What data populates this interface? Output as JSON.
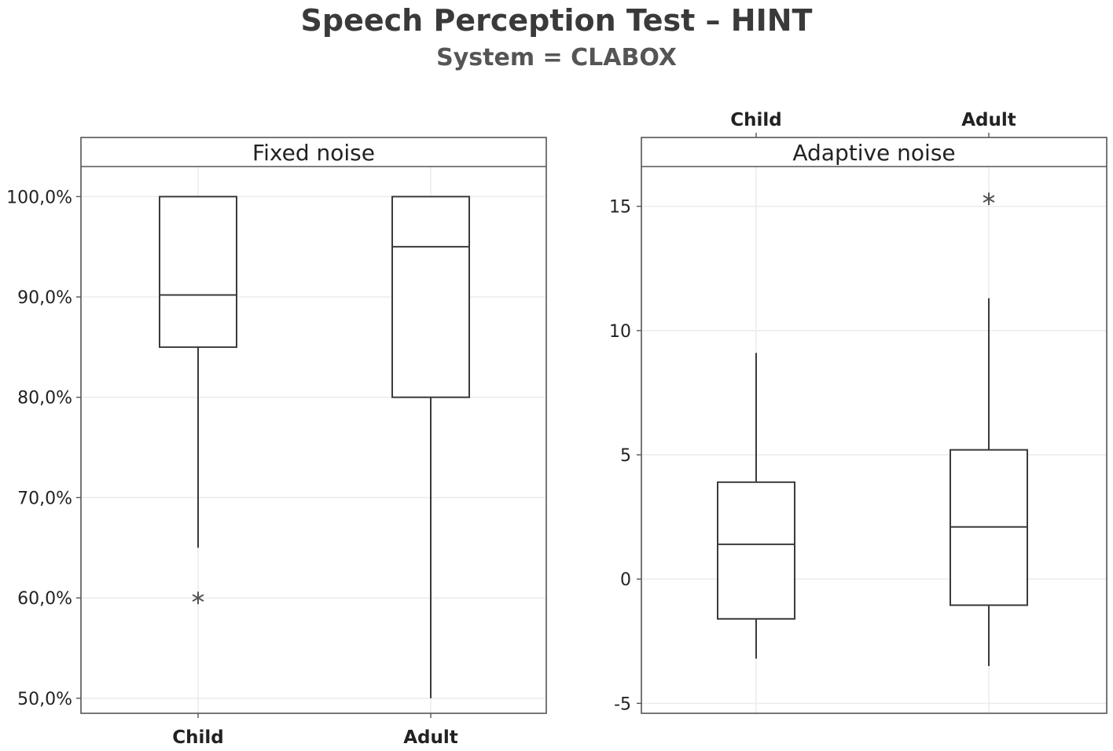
{
  "title": "Speech Perception Test – HINT",
  "subtitle": "System = CLABOX",
  "colors": {
    "box": "#3a3a3a",
    "grid": "#ebebeb",
    "frame": "#555555",
    "outlier": "#555555"
  },
  "chart_data": [
    {
      "type": "boxplot",
      "panel": "Fixed noise",
      "categories": [
        "Child",
        "Adult"
      ],
      "category_axis_position": "bottom",
      "y_ticks": [
        "100,0%",
        "90,0%",
        "80,0%",
        "70,0%",
        "60,0%",
        "50,0%"
      ],
      "y_tick_values": [
        100,
        90,
        80,
        70,
        60,
        50
      ],
      "ylim": [
        48.5,
        103
      ],
      "grid": true,
      "boxes": [
        {
          "category": "Child",
          "whisker_low": 65,
          "q1": 85,
          "median": 90.2,
          "q3": 100,
          "whisker_high": 100,
          "outliers": [
            60
          ]
        },
        {
          "category": "Adult",
          "whisker_low": 50,
          "q1": 80,
          "median": 95,
          "q3": 100,
          "whisker_high": 100,
          "outliers": []
        }
      ]
    },
    {
      "type": "boxplot",
      "panel": "Adaptive noise",
      "categories": [
        "Child",
        "Adult"
      ],
      "category_axis_position": "top",
      "y_ticks": [
        "15",
        "10",
        "5",
        "0",
        "-5"
      ],
      "y_tick_values": [
        15,
        10,
        5,
        0,
        -5
      ],
      "ylim": [
        -5.4,
        16.6
      ],
      "grid": true,
      "boxes": [
        {
          "category": "Child",
          "whisker_low": -3.2,
          "q1": -1.6,
          "median": 1.4,
          "q3": 3.9,
          "whisker_high": 9.1,
          "outliers": []
        },
        {
          "category": "Adult",
          "whisker_low": -3.5,
          "q1": -1.05,
          "median": 2.1,
          "q3": 5.2,
          "whisker_high": 11.3,
          "outliers": [
            15.3
          ]
        }
      ]
    }
  ]
}
